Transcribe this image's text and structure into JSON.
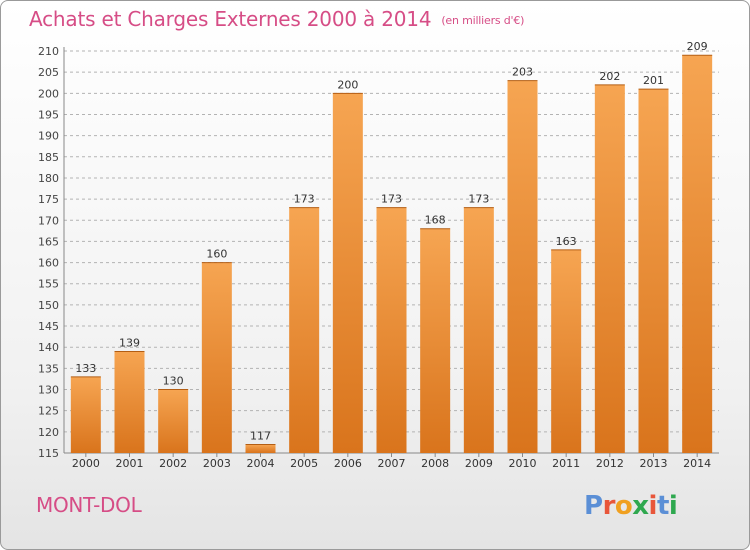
{
  "header": {
    "title": "Achats et Charges Externes 2000 à 2014",
    "unit_note": "(en milliers d'€)"
  },
  "footer": {
    "commune": "MONT-DOL",
    "logo_text": "Proxiti",
    "logo_colors": [
      "#5b8fd6",
      "#e8563a",
      "#f0a020",
      "#2fa84f",
      "#e8563a",
      "#5b8fd6",
      "#2fa84f"
    ]
  },
  "colors": {
    "text_accent": "#d64d86",
    "bar_light": "#f6a552",
    "bar_dark": "#d9741c",
    "grid": "#b3b3b3"
  },
  "chart_data": {
    "type": "bar",
    "title": "Achats et Charges Externes 2000 à 2014",
    "subtitle": "(en milliers d'€)",
    "xlabel": "",
    "ylabel": "",
    "categories": [
      "2000",
      "2001",
      "2002",
      "2003",
      "2004",
      "2005",
      "2006",
      "2007",
      "2008",
      "2009",
      "2010",
      "2011",
      "2012",
      "2013",
      "2014"
    ],
    "values": [
      133,
      139,
      130,
      160,
      117,
      173,
      200,
      173,
      168,
      173,
      203,
      163,
      202,
      201,
      209
    ],
    "ylim": [
      115,
      210
    ],
    "yticks": [
      115,
      120,
      125,
      130,
      135,
      140,
      145,
      150,
      155,
      160,
      165,
      170,
      175,
      180,
      185,
      190,
      195,
      200,
      205,
      210
    ],
    "grid": true,
    "data_labels": true
  }
}
